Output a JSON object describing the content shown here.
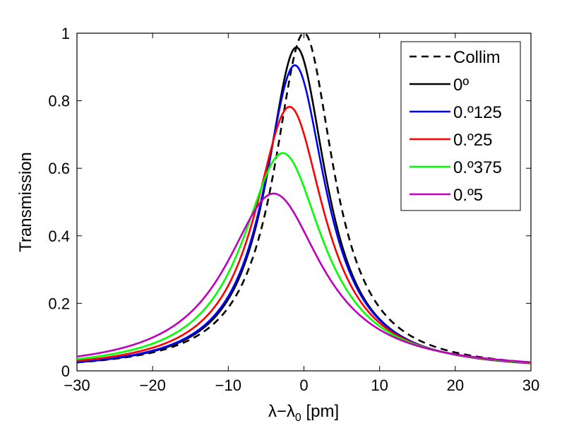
{
  "chart_data": {
    "type": "line",
    "title": "",
    "xlabel": "λ−λ",
    "xlabel_sub": "0",
    "xlabel_unit": " [pm]",
    "ylabel": "Transmission",
    "xlim": [
      -30,
      30
    ],
    "ylim": [
      0,
      1
    ],
    "xticks": [
      -30,
      -20,
      -10,
      0,
      10,
      20,
      30
    ],
    "yticks": [
      0,
      0.2,
      0.4,
      0.6,
      0.8,
      1
    ],
    "xtick_labels": [
      "−30",
      "−20",
      "−10",
      "0",
      "10",
      "20",
      "30"
    ],
    "ytick_labels": [
      "0",
      "0.2",
      "0.4",
      "0.6",
      "0.8",
      "1"
    ],
    "grid": false,
    "legend_position": "top-right",
    "series": [
      {
        "name": "Collim",
        "color": "#000000",
        "dash": "dashed",
        "peak_x": 0.0,
        "peak": 1.0,
        "hwhm": 4.8
      },
      {
        "name": "0º",
        "color": "#000000",
        "dash": "solid",
        "peak_x": -1.0,
        "peak": 0.958,
        "hwhm": 4.8
      },
      {
        "name": "0.º125",
        "color": "#0000ff",
        "dash": "solid",
        "peak_x": -1.2,
        "peak": 0.905,
        "hwhm": 5.0
      },
      {
        "name": "0.º25",
        "color": "#ff0000",
        "dash": "solid",
        "peak_x": -1.9,
        "peak": 0.782,
        "hwhm": 5.6
      },
      {
        "name": "0.º375",
        "color": "#00ff00",
        "dash": "solid",
        "peak_x": -2.8,
        "peak": 0.645,
        "hwhm": 6.5
      },
      {
        "name": "0.º5",
        "color": "#bf00bf",
        "dash": "solid",
        "peak_x": -4.0,
        "peak": 0.525,
        "hwhm": 7.7
      }
    ]
  }
}
